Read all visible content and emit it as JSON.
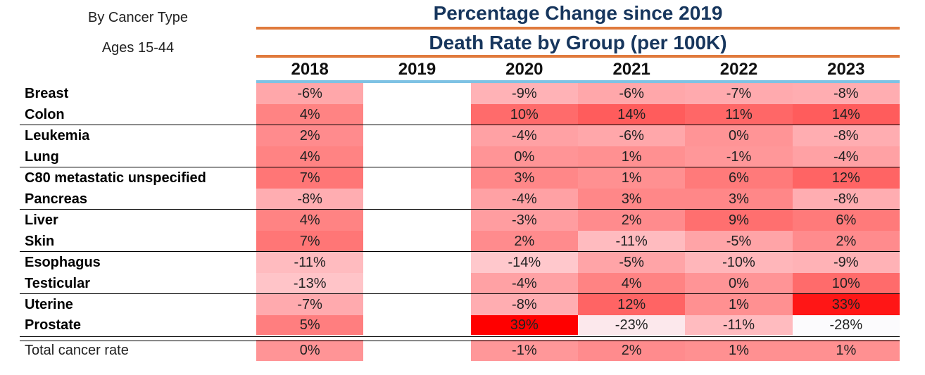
{
  "subtitle_line1": "By Cancer Type",
  "subtitle_line2": "Ages 15-44",
  "title_line1": "Percentage Change since 2019",
  "title_line2": "Death Rate by Group (per 100K)",
  "colors": {
    "title": "#17365d",
    "rule": "#e07a3c",
    "header_rule": "#7ec2e4",
    "max_red": "#ff0000"
  },
  "chart_data": {
    "type": "heatmap",
    "title": "Percentage Change since 2019",
    "subtitle": "Death Rate by Group (per 100K)",
    "columns": [
      "2018",
      "2019",
      "2020",
      "2021",
      "2022",
      "2023"
    ],
    "rows": [
      {
        "label": "Breast",
        "values": [
          "-6%",
          "",
          "-9%",
          "-6%",
          "-7%",
          "-8%"
        ]
      },
      {
        "label": "Colon",
        "values": [
          "4%",
          "",
          "10%",
          "14%",
          "11%",
          "14%"
        ]
      },
      {
        "label": "Leukemia",
        "values": [
          "2%",
          "",
          "-4%",
          "-6%",
          "0%",
          "-8%"
        ]
      },
      {
        "label": "Lung",
        "values": [
          "4%",
          "",
          "0%",
          "1%",
          "-1%",
          "-4%"
        ]
      },
      {
        "label": "C80 metastatic unspecified",
        "values": [
          "7%",
          "",
          "3%",
          "1%",
          "6%",
          "12%"
        ]
      },
      {
        "label": "Pancreas",
        "values": [
          "-8%",
          "",
          "-4%",
          "3%",
          "3%",
          "-8%"
        ]
      },
      {
        "label": "Liver",
        "values": [
          "4%",
          "",
          "-3%",
          "2%",
          "9%",
          "6%"
        ]
      },
      {
        "label": "Skin",
        "values": [
          "7%",
          "",
          "2%",
          "-11%",
          "-5%",
          "2%"
        ]
      },
      {
        "label": "Esophagus",
        "values": [
          "-11%",
          "",
          "-14%",
          "-5%",
          "-10%",
          "-9%"
        ]
      },
      {
        "label": "Testicular",
        "values": [
          "-13%",
          "",
          "-4%",
          "4%",
          "0%",
          "10%"
        ]
      },
      {
        "label": "Uterine",
        "values": [
          "-7%",
          "",
          "-8%",
          "12%",
          "1%",
          "33%"
        ]
      },
      {
        "label": "Prostate",
        "values": [
          "5%",
          "",
          "39%",
          "-23%",
          "-11%",
          "-28%"
        ]
      }
    ],
    "total": {
      "label": "Total cancer rate",
      "values": [
        "0%",
        "",
        "-1%",
        "2%",
        "1%",
        "1%"
      ]
    }
  }
}
